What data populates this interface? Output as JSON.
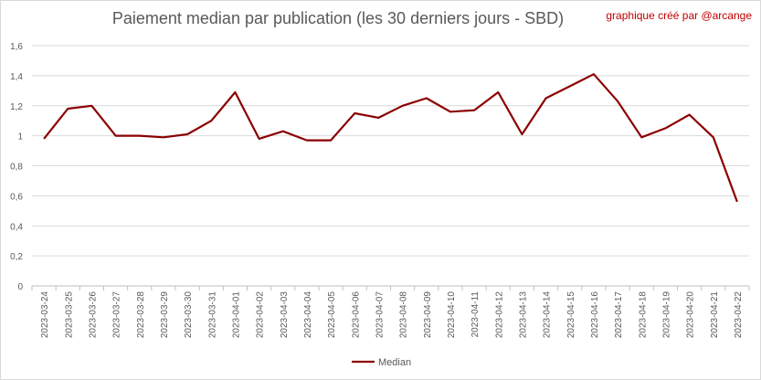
{
  "chart_data": {
    "type": "line",
    "title": "Paiement median par publication (les 30 derniers jours - SBD)",
    "annotation": "graphique créé par @arcange",
    "x": [
      "2023-03-24",
      "2023-03-25",
      "2023-03-26",
      "2023-03-27",
      "2023-03-28",
      "2023-03-29",
      "2023-03-30",
      "2023-03-31",
      "2023-04-01",
      "2023-04-02",
      "2023-04-03",
      "2023-04-04",
      "2023-04-05",
      "2023-04-06",
      "2023-04-07",
      "2023-04-08",
      "2023-04-09",
      "2023-04-10",
      "2023-04-11",
      "2023-04-12",
      "2023-04-13",
      "2023-04-14",
      "2023-04-15",
      "2023-04-16",
      "2023-04-17",
      "2023-04-18",
      "2023-04-19",
      "2023-04-20",
      "2023-04-21",
      "2023-04-22"
    ],
    "series": [
      {
        "name": "Median",
        "color": "#8b0000",
        "values": [
          0.98,
          1.18,
          1.2,
          1.0,
          1.0,
          0.99,
          1.01,
          1.1,
          1.29,
          0.98,
          1.03,
          0.97,
          0.97,
          1.15,
          1.12,
          1.2,
          1.25,
          1.16,
          1.17,
          1.29,
          1.01,
          1.25,
          1.33,
          1.41,
          1.23,
          0.99,
          1.05,
          1.14,
          0.99,
          0.56
        ]
      }
    ],
    "y_ticks": [
      "0",
      "0,2",
      "0,4",
      "0,6",
      "0,8",
      "1",
      "1,2",
      "1,4",
      "1,6"
    ],
    "ylim": [
      0,
      1.6
    ],
    "grid": true,
    "legend_position": "bottom"
  }
}
